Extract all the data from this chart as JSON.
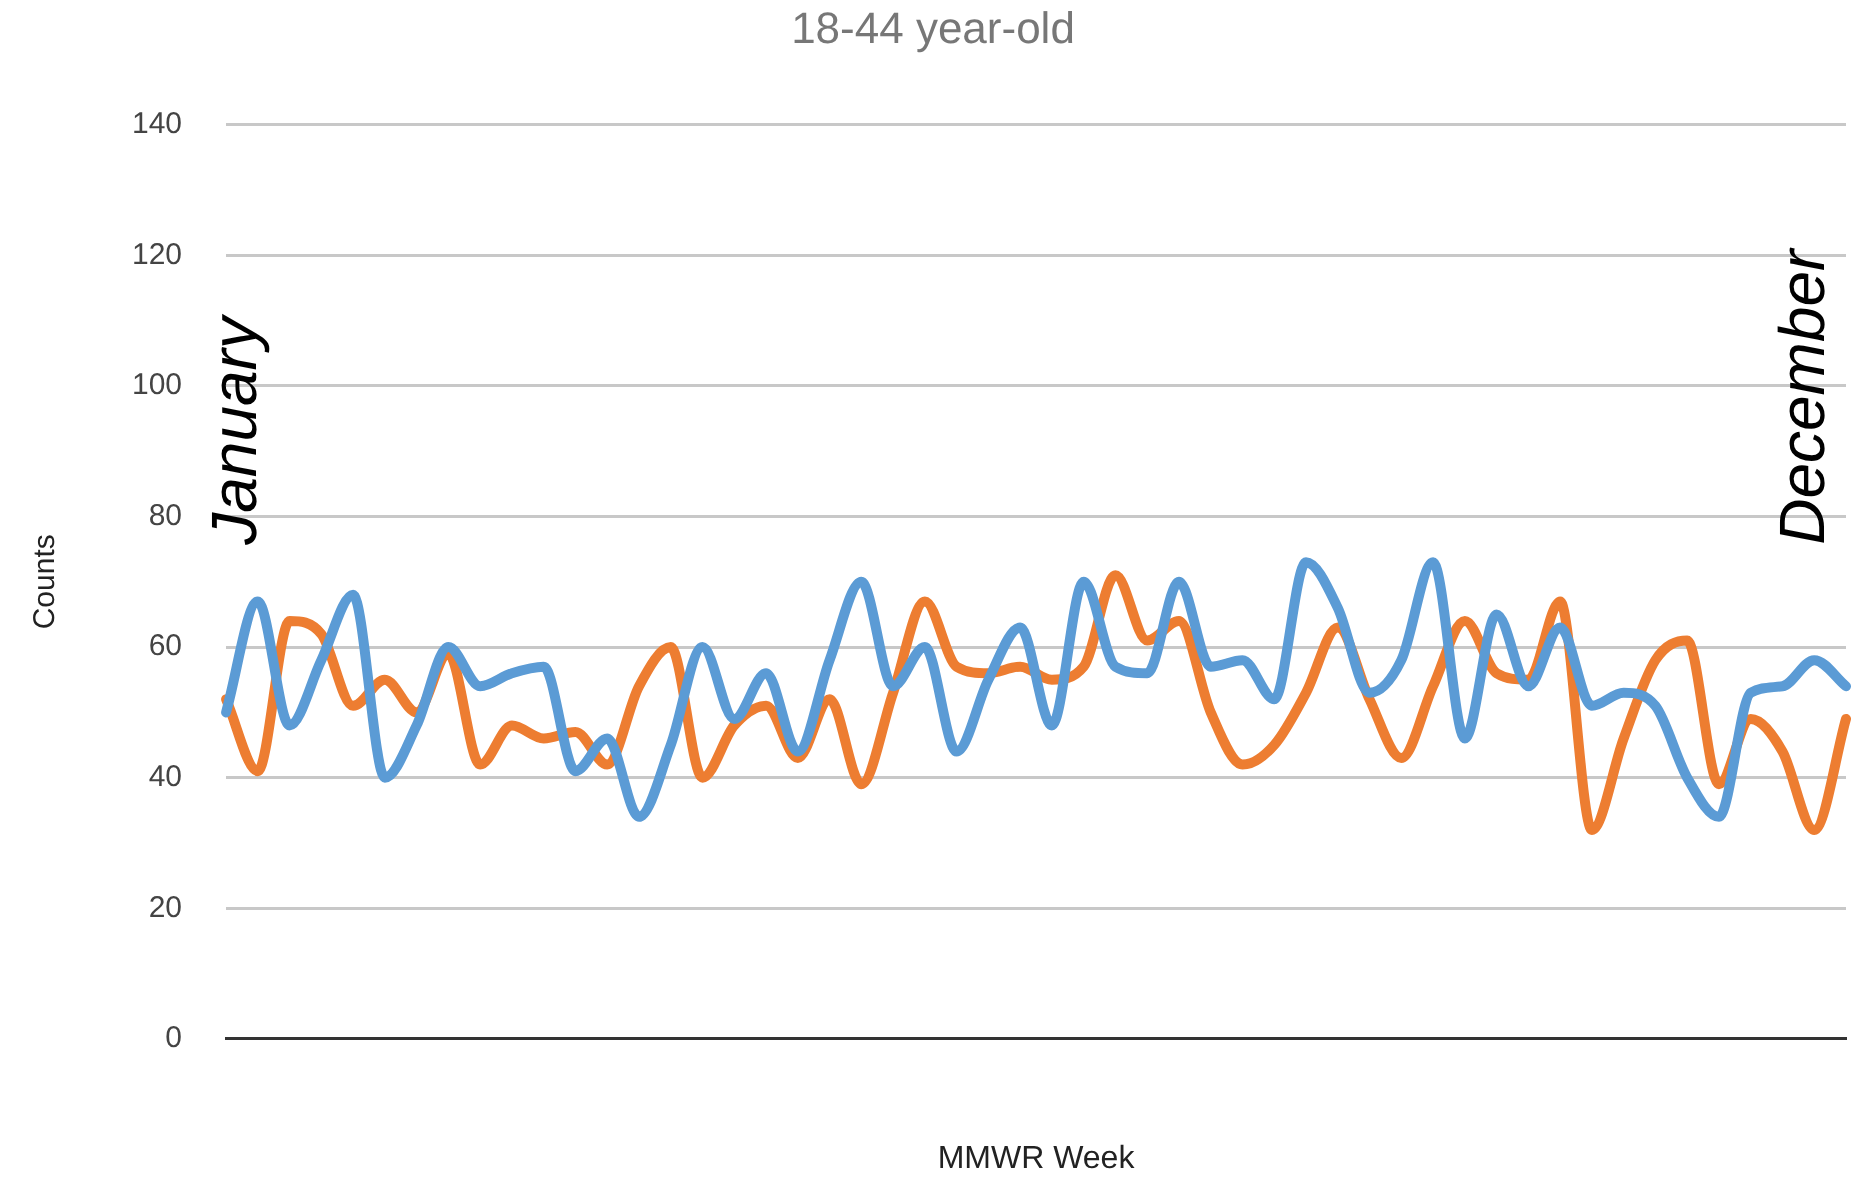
{
  "chart_data": {
    "type": "line",
    "title": "18-44 year-old",
    "xlabel": "MMWR Week",
    "ylabel": "Counts",
    "categories": [
      null,
      null,
      null,
      null,
      null,
      null,
      null,
      null,
      null,
      null,
      null,
      null,
      null,
      null,
      null,
      null,
      null,
      null,
      null,
      null,
      null,
      null,
      null,
      null,
      null,
      null,
      null,
      null,
      null,
      null,
      null,
      null,
      null,
      null,
      null,
      null,
      null,
      null,
      null,
      null,
      null,
      null,
      null,
      null,
      null,
      null,
      null,
      null,
      null,
      null,
      null,
      null
    ],
    "series": [
      {
        "color": "#5b9bd5",
        "values": [
          50,
          67,
          48,
          58,
          68,
          40,
          48,
          60,
          54,
          56,
          57,
          41,
          46,
          34,
          45,
          60,
          49,
          56,
          44,
          58,
          70,
          54,
          60,
          44,
          55,
          63,
          48,
          70,
          57,
          56,
          70,
          57,
          58,
          52,
          73,
          66,
          53,
          58,
          73,
          46,
          65,
          54,
          63,
          51,
          53,
          51,
          40,
          34,
          53,
          54,
          58,
          54
        ]
      },
      {
        "color": "#ed7d31",
        "values": [
          52,
          41,
          64,
          62,
          51,
          55,
          50,
          59,
          42,
          48,
          46,
          47,
          42,
          54,
          60,
          40,
          48,
          51,
          43,
          52,
          39,
          53,
          67,
          57,
          56,
          57,
          55,
          57,
          71,
          61,
          64,
          50,
          42,
          45,
          53,
          63,
          52,
          43,
          54,
          64,
          56,
          55,
          67,
          32,
          46,
          58,
          61,
          39,
          49,
          44,
          32,
          49
        ]
      }
    ],
    "ylim": [
      0,
      140
    ],
    "yticks": [
      0,
      20,
      40,
      60,
      80,
      100,
      120,
      140
    ],
    "grid": "y",
    "legend": false,
    "marker": "none",
    "line_style": "solid",
    "annotations": [
      "January",
      "December"
    ]
  }
}
